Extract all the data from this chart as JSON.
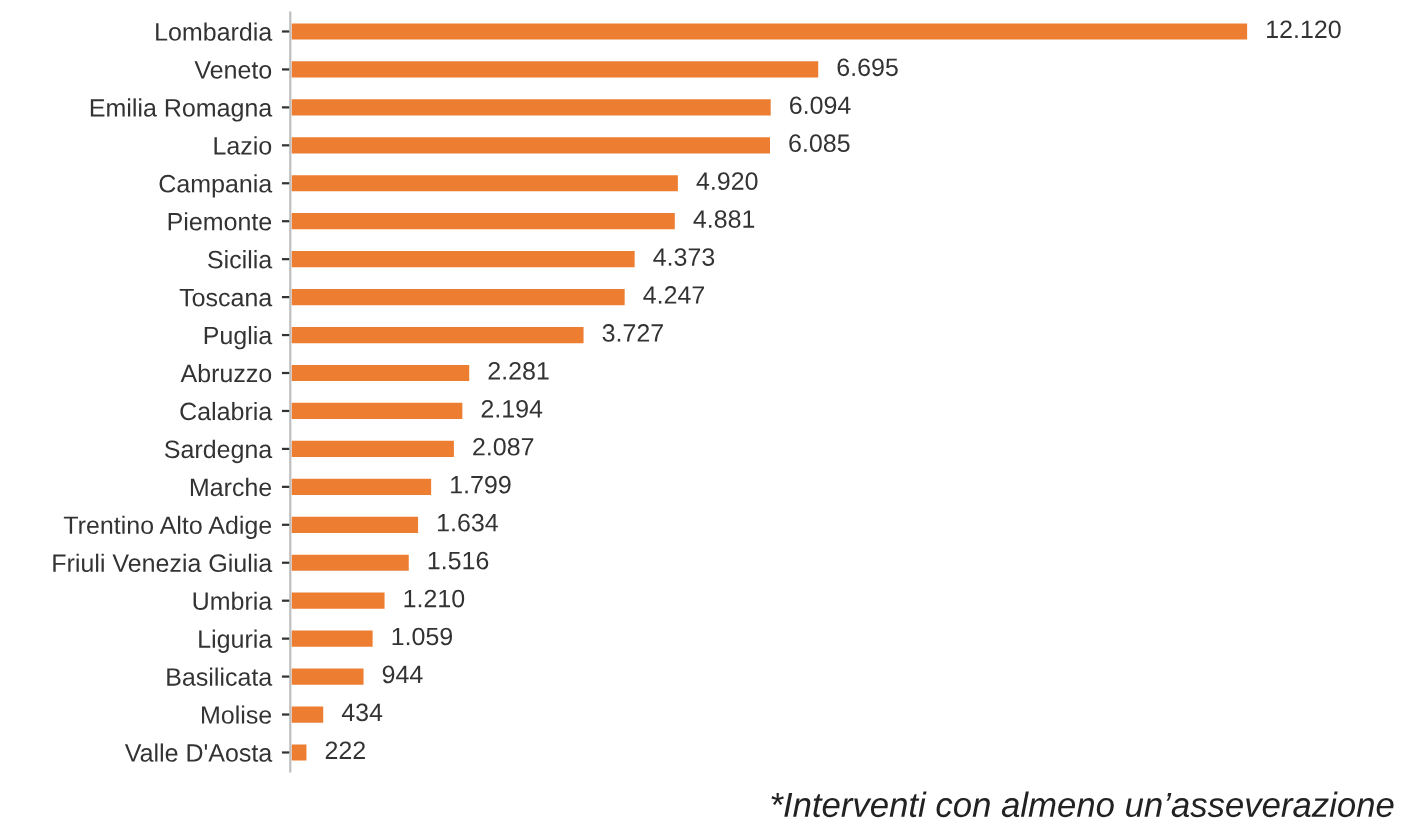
{
  "chart_data": {
    "type": "bar",
    "orientation": "horizontal",
    "categories": [
      "Lombardia",
      "Veneto",
      "Emilia Romagna",
      "Lazio",
      "Campania",
      "Piemonte",
      "Sicilia",
      "Toscana",
      "Puglia",
      "Abruzzo",
      "Calabria",
      "Sardegna",
      "Marche",
      "Trentino Alto Adige",
      "Friuli Venezia Giulia",
      "Umbria",
      "Liguria",
      "Basilicata",
      "Molise",
      "Valle D'Aosta"
    ],
    "values": [
      12120,
      6695,
      6094,
      6085,
      4920,
      4881,
      4373,
      4247,
      3727,
      2281,
      2194,
      2087,
      1799,
      1634,
      1516,
      1210,
      1059,
      944,
      434,
      222
    ],
    "value_labels": [
      "12.120",
      "6.695",
      "6.094",
      "6.085",
      "4.920",
      "4.881",
      "4.373",
      "4.247",
      "3.727",
      "2.281",
      "2.194",
      "2.087",
      "1.799",
      "1.634",
      "1.516",
      "1.210",
      "1.059",
      "944",
      "434",
      "222"
    ],
    "color": "#ed7d31",
    "annotations": [
      "*Interventi con almeno un’asseverazione"
    ]
  }
}
